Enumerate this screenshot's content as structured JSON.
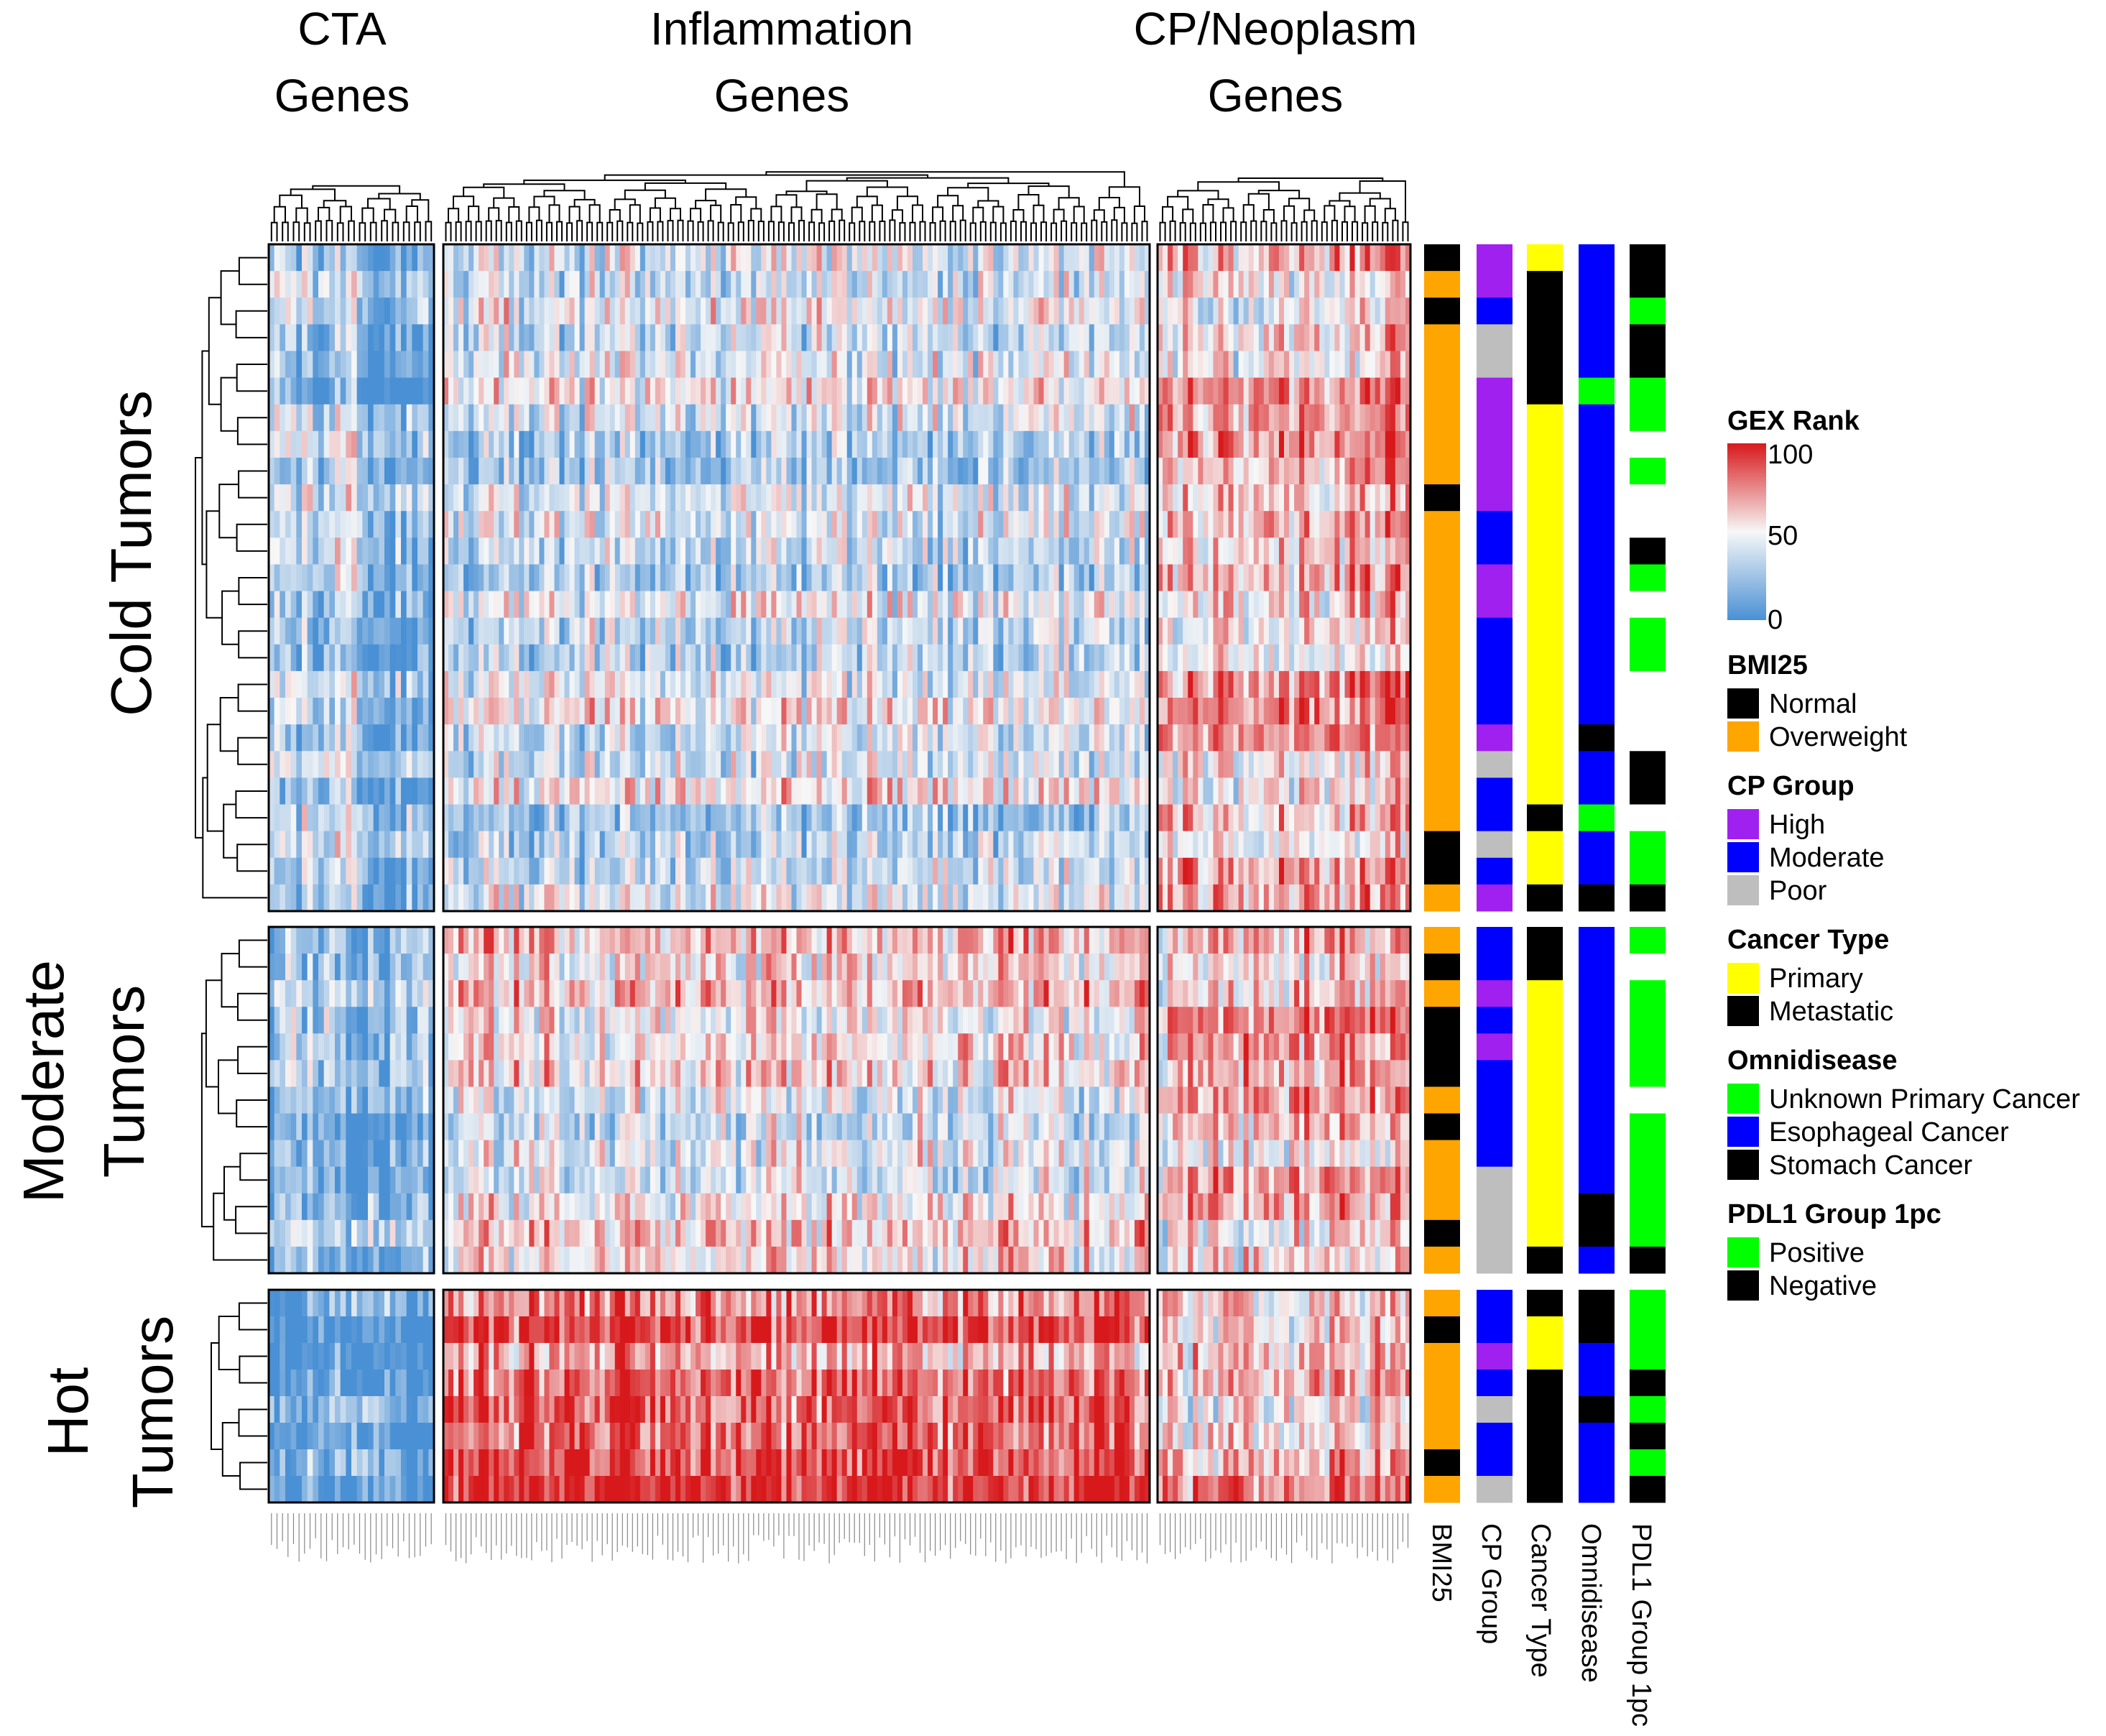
{
  "chart_data": {
    "type": "heatmap",
    "title": "",
    "column_groups": [
      {
        "name": "CTA",
        "label_line1": "CTA",
        "label_line2": "Genes",
        "n_genes": 30,
        "pattern": {
          "cold": 28,
          "moderate": 25,
          "hot": 20
        }
      },
      {
        "name": "Inflammation",
        "label_line1": "Inflammation",
        "label_line2": "Genes",
        "n_genes": 140,
        "pattern": {
          "cold": 38,
          "moderate": 52,
          "hot": 82
        }
      },
      {
        "name": "CP/Neoplasm",
        "label_line1": "CP/Neoplasm",
        "label_line2": "Genes",
        "n_genes": 50,
        "pattern": {
          "cold": 62,
          "moderate": 64,
          "hot": 62
        }
      }
    ],
    "row_groups": [
      {
        "name": "Cold Tumors",
        "label_line1": "Cold Tumors",
        "label_line2": "",
        "n_samples": 25
      },
      {
        "name": "Moderate Tumors",
        "label_line1": "Moderate",
        "label_line2": "Tumors",
        "n_samples": 13
      },
      {
        "name": "Hot Tumors",
        "label_line1": "Hot",
        "label_line2": "Tumors",
        "n_samples": 8
      }
    ],
    "annotation_tracks": [
      {
        "name": "BMI25",
        "label": "BMI25",
        "values": [
          [
            "Normal",
            "Overweight",
            "Normal",
            "Overweight",
            "Overweight",
            "Overweight",
            "Overweight",
            "Overweight",
            "Overweight",
            "Normal",
            "Overweight",
            "Overweight",
            "Overweight",
            "Overweight",
            "Overweight",
            "Overweight",
            "Overweight",
            "Overweight",
            "Overweight",
            "Overweight",
            "Overweight",
            "Overweight",
            "Normal",
            "Normal",
            "Overweight"
          ],
          [
            "Overweight",
            "Normal",
            "Overweight",
            "Normal",
            "Normal",
            "Normal",
            "Overweight",
            "Normal",
            "Overweight",
            "Overweight",
            "Overweight",
            "Normal",
            "Overweight"
          ],
          [
            "Overweight",
            "Normal",
            "Overweight",
            "Overweight",
            "Overweight",
            "Overweight",
            "Normal",
            "Overweight"
          ]
        ]
      },
      {
        "name": "CP Group",
        "label": "CP Group",
        "values": [
          [
            "High",
            "High",
            "Moderate",
            "Poor",
            "Poor",
            "High",
            "High",
            "High",
            "High",
            "High",
            "Moderate",
            "Moderate",
            "High",
            "High",
            "Moderate",
            "Moderate",
            "Moderate",
            "Moderate",
            "High",
            "Poor",
            "Moderate",
            "Moderate",
            "Poor",
            "Moderate",
            "High"
          ],
          [
            "Moderate",
            "Moderate",
            "High",
            "Moderate",
            "High",
            "Moderate",
            "Moderate",
            "Moderate",
            "Moderate",
            "Poor",
            "Poor",
            "Poor",
            "Poor"
          ],
          [
            "Moderate",
            "Moderate",
            "High",
            "Moderate",
            "Poor",
            "Moderate",
            "Moderate",
            "Poor"
          ]
        ]
      },
      {
        "name": "Cancer Type",
        "label": "Cancer Type",
        "values": [
          [
            "Primary",
            "Metastatic",
            "Metastatic",
            "Metastatic",
            "Metastatic",
            "Metastatic",
            "Primary",
            "Primary",
            "Primary",
            "Primary",
            "Primary",
            "Primary",
            "Primary",
            "Primary",
            "Primary",
            "Primary",
            "Primary",
            "Primary",
            "Primary",
            "Primary",
            "Primary",
            "Metastatic",
            "Primary",
            "Primary",
            "Metastatic"
          ],
          [
            "Metastatic",
            "Metastatic",
            "Primary",
            "Primary",
            "Primary",
            "Primary",
            "Primary",
            "Primary",
            "Primary",
            "Primary",
            "Primary",
            "Primary",
            "Metastatic"
          ],
          [
            "Metastatic",
            "Primary",
            "Primary",
            "Metastatic",
            "Metastatic",
            "Metastatic",
            "Metastatic",
            "Metastatic"
          ]
        ]
      },
      {
        "name": "Omnidisease",
        "label": "Omnidisease",
        "values": [
          [
            "Esophageal Cancer",
            "Esophageal Cancer",
            "Esophageal Cancer",
            "Esophageal Cancer",
            "Esophageal Cancer",
            "Unknown Primary Cancer",
            "Esophageal Cancer",
            "Esophageal Cancer",
            "Esophageal Cancer",
            "Esophageal Cancer",
            "Esophageal Cancer",
            "Esophageal Cancer",
            "Esophageal Cancer",
            "Esophageal Cancer",
            "Esophageal Cancer",
            "Esophageal Cancer",
            "Esophageal Cancer",
            "Esophageal Cancer",
            "Stomach Cancer",
            "Esophageal Cancer",
            "Esophageal Cancer",
            "Unknown Primary Cancer",
            "Esophageal Cancer",
            "Esophageal Cancer",
            "Stomach Cancer"
          ],
          [
            "Esophageal Cancer",
            "Esophageal Cancer",
            "Esophageal Cancer",
            "Esophageal Cancer",
            "Esophageal Cancer",
            "Esophageal Cancer",
            "Esophageal Cancer",
            "Esophageal Cancer",
            "Esophageal Cancer",
            "Esophageal Cancer",
            "Stomach Cancer",
            "Stomach Cancer",
            "Esophageal Cancer"
          ],
          [
            "Stomach Cancer",
            "Stomach Cancer",
            "Esophageal Cancer",
            "Esophageal Cancer",
            "Stomach Cancer",
            "Esophageal Cancer",
            "Esophageal Cancer",
            "Esophageal Cancer"
          ]
        ]
      },
      {
        "name": "PDL1 Group 1pc",
        "label": "PDL1 Group 1pc",
        "values": [
          [
            "Negative",
            "Negative",
            "Positive",
            "Negative",
            "Negative",
            "Positive",
            "Positive",
            "NA",
            "Positive",
            "NA",
            "NA",
            "Negative",
            "Positive",
            "NA",
            "Positive",
            "Positive",
            "NA",
            "NA",
            "NA",
            "Negative",
            "Negative",
            "NA",
            "Positive",
            "Positive",
            "Negative"
          ],
          [
            "Positive",
            "NA",
            "Positive",
            "Positive",
            "Positive",
            "Positive",
            "NA",
            "Positive",
            "Positive",
            "Positive",
            "Positive",
            "Positive",
            "Negative"
          ],
          [
            "Positive",
            "Positive",
            "Positive",
            "Negative",
            "Positive",
            "Negative",
            "Positive",
            "Negative"
          ]
        ]
      }
    ],
    "colorbar": {
      "title": "GEX Rank",
      "ticks": [
        "100",
        "50",
        "0"
      ],
      "range": [
        0,
        100
      ]
    },
    "legends": [
      {
        "title": "BMI25",
        "items": [
          {
            "label": "Normal",
            "color": "#000000"
          },
          {
            "label": "Overweight",
            "color": "#FFA500"
          }
        ]
      },
      {
        "title": "CP Group",
        "items": [
          {
            "label": "High",
            "color": "#A020F0"
          },
          {
            "label": "Moderate",
            "color": "#0000FF"
          },
          {
            "label": "Poor",
            "color": "#BEBEBE"
          }
        ]
      },
      {
        "title": "Cancer Type",
        "items": [
          {
            "label": "Primary",
            "color": "#FFFF00"
          },
          {
            "label": "Metastatic",
            "color": "#000000"
          }
        ]
      },
      {
        "title": "Omnidisease",
        "items": [
          {
            "label": "Unknown Primary Cancer",
            "color": "#00FF00"
          },
          {
            "label": "Esophageal Cancer",
            "color": "#0000FF"
          },
          {
            "label": "Stomach Cancer",
            "color": "#000000"
          }
        ]
      },
      {
        "title": "PDL1 Group 1pc",
        "items": [
          {
            "label": "Positive",
            "color": "#00FF00"
          },
          {
            "label": "Negative",
            "color": "#000000"
          }
        ]
      }
    ],
    "colors": {
      "low": "#4A90D4",
      "mid": "#F7F7F7",
      "high": "#D7191C",
      "na": "#FFFFFF"
    }
  }
}
